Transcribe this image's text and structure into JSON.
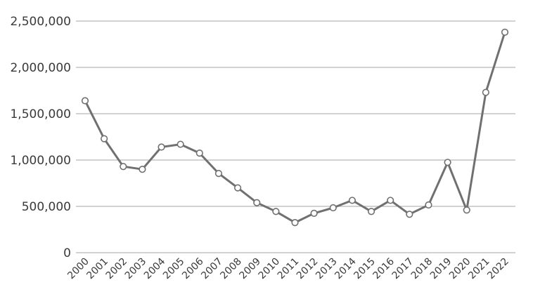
{
  "chart_data": {
    "type": "line",
    "title": "",
    "xlabel": "",
    "ylabel": "",
    "ylim": [
      0,
      2500000
    ],
    "yticks": [
      0,
      500000,
      1000000,
      1500000,
      2000000,
      2500000
    ],
    "ytick_labels": [
      "0",
      "500,000",
      "1,000,000",
      "1,500,000",
      "2,000,000",
      "2,500,000"
    ],
    "grid": true,
    "legend": "none",
    "colors": {
      "line": "#707070",
      "marker_fill": "#ffffff",
      "grid": "#a6a6a6",
      "text": "#3a3a3a"
    },
    "x": [
      "2000",
      "2001",
      "2002",
      "2003",
      "2004",
      "2005",
      "2006",
      "2007",
      "2008",
      "2009",
      "2010",
      "2011",
      "2012",
      "2013",
      "2014",
      "2015",
      "2016",
      "2017",
      "2018",
      "2019",
      "2020",
      "2021",
      "2022"
    ],
    "series": [
      {
        "values": [
          1640000,
          1230000,
          930000,
          900000,
          1140000,
          1170000,
          1075000,
          855000,
          700000,
          540000,
          445000,
          325000,
          425000,
          485000,
          565000,
          445000,
          565000,
          415000,
          515000,
          975000,
          460000,
          1730000,
          2380000
        ]
      }
    ]
  }
}
